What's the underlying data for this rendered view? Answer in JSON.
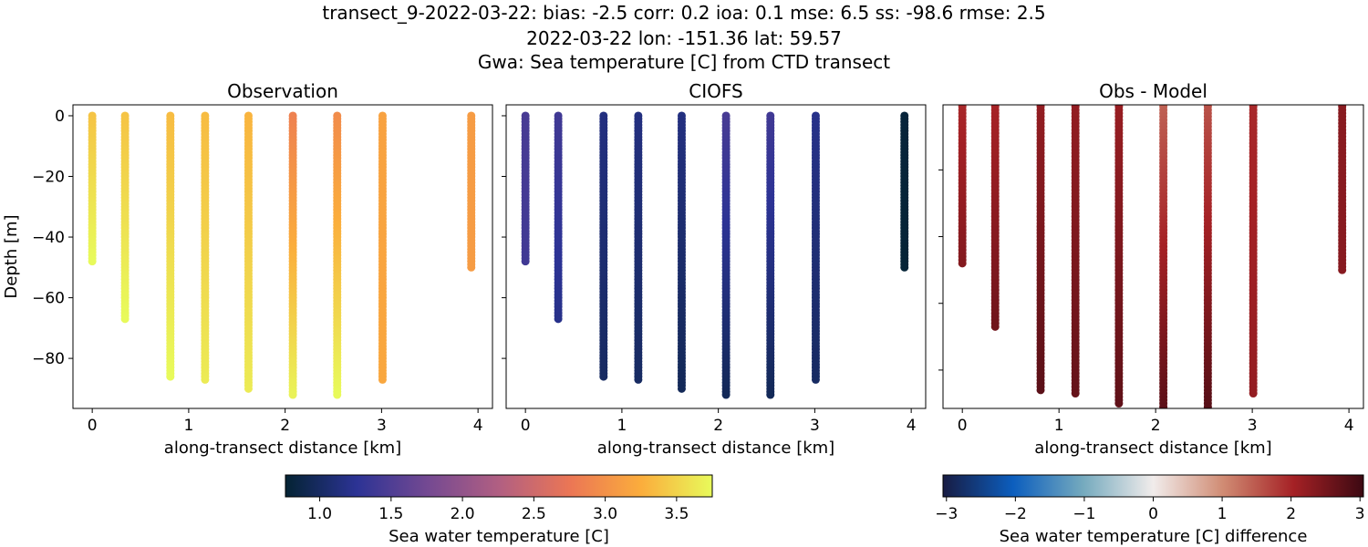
{
  "title_lines": [
    "transect_9-2022-03-22: bias: -2.5  corr: 0.2  ioa: 0.1  mse: 6.5  ss: -98.6  rmse: 2.5",
    "2022-03-22 lon: -151.36 lat: 59.57",
    "Gwa: Sea temperature [C] from CTD transect"
  ],
  "chart_data": [
    {
      "type": "scatter",
      "title": "Observation",
      "xlabel": "along-transect distance [km]",
      "ylabel": "Depth [m]",
      "xlim": [
        -0.2,
        4.15
      ],
      "ylim": [
        -96.5,
        3.6
      ],
      "xticks": [
        0,
        1,
        2,
        3,
        4
      ],
      "yticks": [
        0,
        -20,
        -40,
        -60,
        -80
      ],
      "colormap": "thermal",
      "field": "obs"
    },
    {
      "type": "scatter",
      "title": "CIOFS",
      "xlabel": "along-transect distance [km]",
      "xlim": [
        -0.2,
        4.15
      ],
      "ylim": [
        -96.5,
        3.6
      ],
      "xticks": [
        0,
        1,
        2,
        3,
        4
      ],
      "yticks": [
        0,
        -20,
        -40,
        -60,
        -80
      ],
      "colormap": "thermal",
      "field": "model"
    },
    {
      "type": "scatter",
      "title": "Obs - Model",
      "xlabel": "along-transect distance [km]",
      "xlim": [
        -0.2,
        4.15
      ],
      "ylim": [
        -91.5,
        -0.5
      ],
      "xticks": [
        0,
        1,
        2,
        3,
        4
      ],
      "yticks": [
        -20,
        -40,
        -60,
        -80
      ],
      "colormap": "balance",
      "field": "diff"
    }
  ],
  "casts": [
    {
      "distance_km": 0,
      "max_depth_m": 48,
      "obs_top": 3.4,
      "obs_bottom": 3.75,
      "model_top": 1.45,
      "model_bottom": 1.4
    },
    {
      "distance_km": 0.34,
      "max_depth_m": 67,
      "obs_top": 3.4,
      "obs_bottom": 3.75,
      "model_top": 1.4,
      "model_bottom": 1.2
    },
    {
      "distance_km": 0.81,
      "max_depth_m": 86,
      "obs_top": 3.35,
      "obs_bottom": 3.75,
      "model_top": 1.15,
      "model_bottom": 1.0
    },
    {
      "distance_km": 1.17,
      "max_depth_m": 87,
      "obs_top": 3.35,
      "obs_bottom": 3.65,
      "model_top": 1.15,
      "model_bottom": 1.0
    },
    {
      "distance_km": 1.62,
      "max_depth_m": 90,
      "obs_top": 3.3,
      "obs_bottom": 3.65,
      "model_top": 1.15,
      "model_bottom": 0.95
    },
    {
      "distance_km": 2.08,
      "max_depth_m": 92,
      "obs_top": 2.85,
      "obs_bottom": 3.7,
      "model_top": 1.45,
      "model_bottom": 0.95
    },
    {
      "distance_km": 2.54,
      "max_depth_m": 92,
      "obs_top": 2.95,
      "obs_bottom": 3.75,
      "model_top": 1.4,
      "model_bottom": 0.95
    },
    {
      "distance_km": 3.01,
      "max_depth_m": 87,
      "obs_top": 3.15,
      "obs_bottom": 3.2,
      "model_top": 1.2,
      "model_bottom": 1.0
    },
    {
      "distance_km": 3.93,
      "max_depth_m": 50,
      "obs_top": 3.1,
      "obs_bottom": 3.1,
      "model_top": 0.8,
      "model_bottom": 0.78
    }
  ],
  "colorbars": [
    {
      "label": "Sea water temperature [C]",
      "range": [
        0.76,
        3.75
      ],
      "ticks": [
        1.0,
        1.5,
        2.0,
        2.5,
        3.0,
        3.5
      ],
      "tick_labels": [
        "1.0",
        "1.5",
        "2.0",
        "2.5",
        "3.0",
        "3.5"
      ],
      "colors": [
        "#042333",
        "#2c3395",
        "#744992",
        "#b15f82",
        "#eb7655",
        "#fbad3c",
        "#e8fa5b"
      ]
    },
    {
      "label": "Sea water temperature [C] difference",
      "range": [
        -3.05,
        3.05
      ],
      "ticks": [
        -3,
        -2,
        -1,
        0,
        1,
        2,
        3
      ],
      "tick_labels": [
        "−3",
        "−2",
        "−1",
        "0",
        "1",
        "2",
        "3"
      ],
      "colors": [
        "#181c43",
        "#0c5ebe",
        "#75aabe",
        "#f1eceb",
        "#d08b73",
        "#a52125",
        "#3c0912"
      ]
    }
  ]
}
